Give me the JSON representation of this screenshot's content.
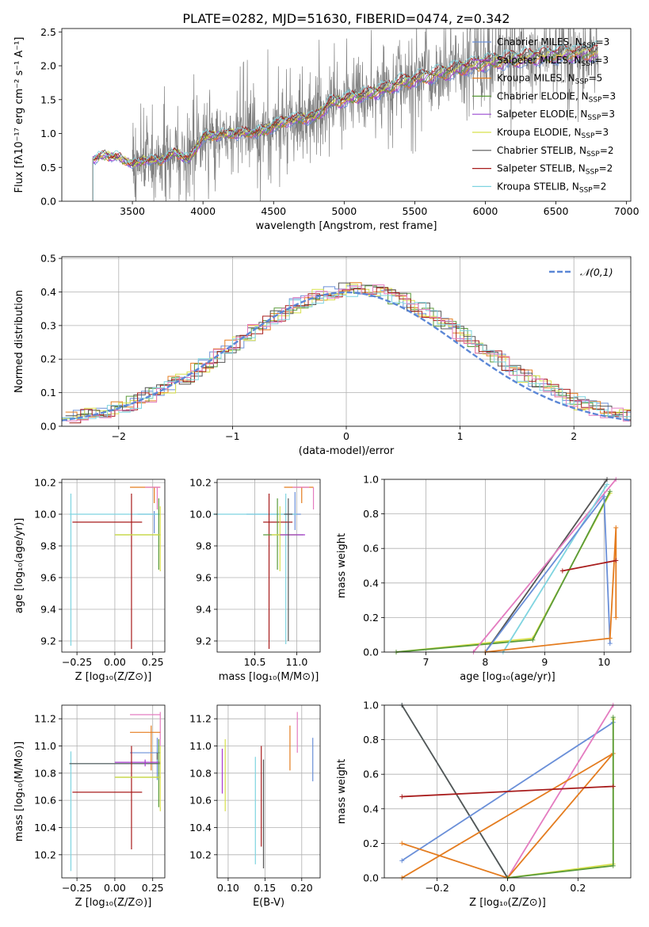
{
  "title": "PLATE=0282, MJD=51630, FIBERID=0474, z=0.342",
  "colors": {
    "Chabrier MILES": "#6a8fd8",
    "Salpeter MILES": "#a93ad1",
    "Kroupa MILES": "#e47c1f",
    "Chabrier ELODIE": "#5a9b3a",
    "Salpeter ELODIE": "#9a4ad1",
    "Kroupa ELODIE": "#d8e04a",
    "Chabrier STELIB": "#555555",
    "Salpeter STELIB": "#a81c1c",
    "Kroupa STELIB": "#7fd4e0",
    "pink": "#e47cc0",
    "data": "#7f7f7f",
    "gauss": "#5b87d6"
  },
  "chart_data": [
    {
      "id": "spectrum",
      "type": "line",
      "xlabel": "wavelength [Angstrom, rest frame]",
      "ylabel": "Flux [fλ10⁻¹⁷ erg cm⁻² s⁻¹ A⁻¹]",
      "xlim": [
        3000,
        7030
      ],
      "ylim": [
        0,
        2.55
      ],
      "xticks": [
        3500,
        4000,
        4500,
        5000,
        5500,
        6000,
        6500,
        7000
      ],
      "yticks": [
        0.0,
        0.5,
        1.0,
        1.5,
        2.0,
        2.5
      ],
      "continuum": {
        "x": [
          3200,
          3300,
          3400,
          3500,
          3600,
          3700,
          3800,
          3900,
          4000,
          4200,
          4400,
          4600,
          4800,
          4900,
          5000,
          5200,
          5400,
          5600,
          5800,
          6000,
          6200,
          6400,
          6600,
          6800
        ],
        "y": [
          0.6,
          0.68,
          0.65,
          0.55,
          0.62,
          0.6,
          0.72,
          0.62,
          0.95,
          1.0,
          1.02,
          1.2,
          1.25,
          1.45,
          1.5,
          1.6,
          1.75,
          1.85,
          1.95,
          2.05,
          2.1,
          2.15,
          2.18,
          2.2
        ]
      },
      "legend": [
        "Chabrier MILES, N_SSP=3",
        "Salpeter MILES, N_SSP=3",
        "Kroupa MILES, N_SSP=5",
        "Chabrier ELODIE, N_SSP=3",
        "Salpeter ELODIE, N_SSP=3",
        "Kroupa ELODIE, N_SSP=3",
        "Chabrier STELIB, N_SSP=2",
        "Salpeter STELIB, N_SSP=2",
        "Kroupa STELIB, N_SSP=2"
      ],
      "legend_placement": "right"
    },
    {
      "id": "residuals",
      "type": "line",
      "xlabel": "(data-model)/error",
      "ylabel": "Normed distribution",
      "xlim": [
        -2.5,
        2.5
      ],
      "ylim": [
        0,
        0.505
      ],
      "xticks": [
        -2,
        -1,
        0,
        1,
        2
      ],
      "yticks": [
        0.0,
        0.1,
        0.2,
        0.3,
        0.4,
        0.5
      ],
      "legend": [
        "𝒩(0,1)"
      ],
      "legend_placement": "top-right",
      "grid": true
    },
    {
      "id": "age-Z",
      "type": "scatter",
      "xlabel": "Z [log₁₀(Z/Z⊙)]",
      "ylabel": "age  [log₁₀(age/yr)]",
      "xlim": [
        -0.35,
        0.33
      ],
      "ylim": [
        9.13,
        10.22
      ],
      "xticks": [
        -0.25,
        0.0,
        0.25
      ],
      "yticks": [
        9.2,
        9.4,
        9.6,
        9.8,
        10.0,
        10.2
      ],
      "grid": true
    },
    {
      "id": "age-mass",
      "type": "scatter",
      "xlabel": "mass [log₁₀(M/M⊙)]",
      "xlim": [
        10.05,
        11.28
      ],
      "ylim": [
        9.13,
        10.22
      ],
      "xticks": [
        10.5,
        11.0
      ],
      "yticks": [
        9.2,
        9.4,
        9.6,
        9.8,
        10.0,
        10.2
      ],
      "grid": true
    },
    {
      "id": "weight-age",
      "type": "line",
      "xlabel": "age  [log₁₀(age/yr)]",
      "ylabel": "mass weight",
      "xlim": [
        6.3,
        10.45
      ],
      "ylim": [
        0,
        1.0
      ],
      "xticks": [
        7,
        8,
        9,
        10
      ],
      "yticks": [
        0.0,
        0.2,
        0.4,
        0.6,
        0.8,
        1.0
      ],
      "grid": true
    },
    {
      "id": "mass-Z",
      "type": "scatter",
      "xlabel": "Z [log₁₀(Z/Z⊙)]",
      "ylabel": "mass [log₁₀(M/M⊙)]",
      "xlim": [
        -0.35,
        0.33
      ],
      "ylim": [
        10.03,
        11.3
      ],
      "xticks": [
        -0.25,
        0.0,
        0.25
      ],
      "yticks": [
        10.2,
        10.4,
        10.6,
        10.8,
        11.0,
        11.2
      ],
      "grid": true
    },
    {
      "id": "mass-EBV",
      "type": "scatter",
      "xlabel": "E(B-V)",
      "xlim": [
        0.085,
        0.225
      ],
      "ylim": [
        10.03,
        11.3
      ],
      "xticks": [
        0.1,
        0.15,
        0.2
      ],
      "yticks": [
        10.2,
        10.4,
        10.6,
        10.8,
        11.0,
        11.2
      ],
      "grid": true
    },
    {
      "id": "weight-Z",
      "type": "line",
      "xlabel": "Z [log₁₀(Z/Z⊙)]",
      "ylabel": "mass weight",
      "xlim": [
        -0.35,
        0.35
      ],
      "ylim": [
        0,
        1.0
      ],
      "xticks": [
        -0.2,
        0.0,
        0.2
      ],
      "yticks": [
        0.0,
        0.2,
        0.4,
        0.6,
        0.8,
        1.0
      ],
      "grid": true
    }
  ]
}
